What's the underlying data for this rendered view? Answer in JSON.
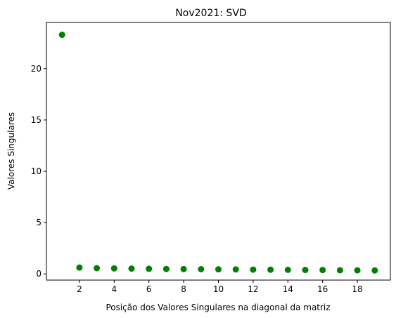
{
  "chart_data": {
    "type": "scatter",
    "title": "Nov2021: SVD",
    "xlabel": "Posição dos Valores Singulares na diagonal da matriz",
    "ylabel": "Valores Singulares",
    "xlim": [
      0.1,
      19.9
    ],
    "ylim": [
      -0.6,
      24.5
    ],
    "xticks": [
      2,
      4,
      6,
      8,
      10,
      12,
      14,
      16,
      18
    ],
    "yticks": [
      0,
      5,
      10,
      15,
      20
    ],
    "grid": false,
    "marker_color": "#008000",
    "series": [
      {
        "x": [
          1,
          2,
          3,
          4,
          5,
          6,
          7,
          8,
          9,
          10,
          11,
          12,
          13,
          14,
          15,
          16,
          17,
          18,
          19
        ],
        "y": [
          23.3,
          0.62,
          0.56,
          0.54,
          0.52,
          0.5,
          0.48,
          0.47,
          0.46,
          0.45,
          0.44,
          0.42,
          0.41,
          0.4,
          0.39,
          0.38,
          0.36,
          0.35,
          0.34
        ]
      }
    ]
  }
}
